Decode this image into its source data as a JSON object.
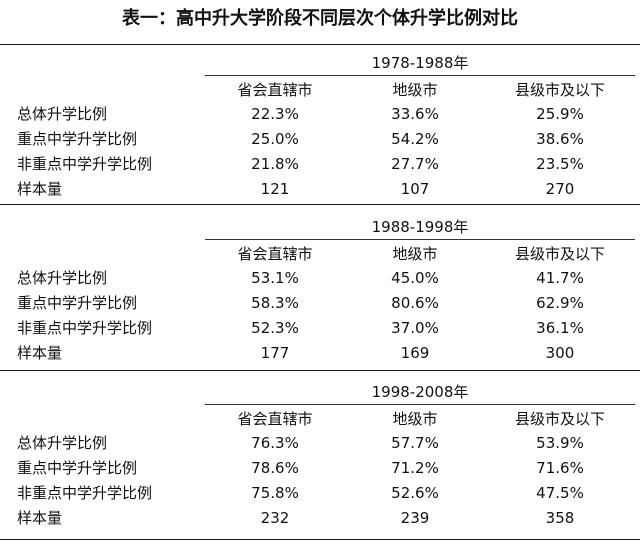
{
  "title": "表一：高中升大学阶段不同层次个体升学比例对比",
  "columns": [
    "省会直辖市",
    "地级市",
    "县级市及以下"
  ],
  "row_labels": [
    "总体升学比例",
    "重点中学升学比例",
    "非重点中学升学比例",
    "样本量"
  ],
  "sections": [
    {
      "period": "1978-1988年",
      "rows": [
        [
          "22.3%",
          "33.6%",
          "25.9%"
        ],
        [
          "25.0%",
          "54.2%",
          "38.6%"
        ],
        [
          "21.8%",
          "27.7%",
          "23.5%"
        ],
        [
          "121",
          "107",
          "270"
        ]
      ]
    },
    {
      "period": "1988-1998年",
      "rows": [
        [
          "53.1%",
          "45.0%",
          "41.7%"
        ],
        [
          "58.3%",
          "80.6%",
          "62.9%"
        ],
        [
          "52.3%",
          "37.0%",
          "36.1%"
        ],
        [
          "177",
          "169",
          "300"
        ]
      ]
    },
    {
      "period": "1998-2008年",
      "rows": [
        [
          "76.3%",
          "57.7%",
          "53.9%"
        ],
        [
          "78.6%",
          "71.2%",
          "71.6%"
        ],
        [
          "75.8%",
          "52.6%",
          "47.5%"
        ],
        [
          "232",
          "239",
          "358"
        ]
      ]
    }
  ]
}
